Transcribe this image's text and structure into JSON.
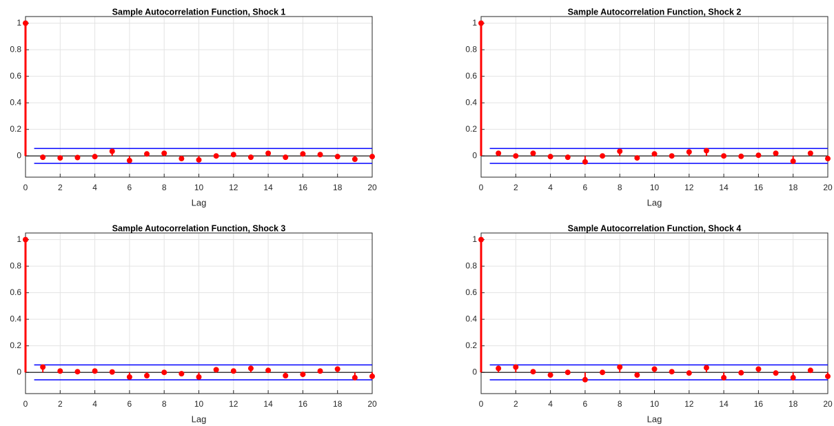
{
  "chart_data": [
    {
      "type": "stem",
      "title": "Sample Autocorrelation Function, Shock 1",
      "xlabel": "Lag",
      "x": [
        0,
        1,
        2,
        3,
        4,
        5,
        6,
        7,
        8,
        9,
        10,
        11,
        12,
        13,
        14,
        15,
        16,
        17,
        18,
        19,
        20
      ],
      "values": [
        1,
        -0.01,
        -0.015,
        -0.012,
        -0.005,
        0.035,
        -0.035,
        0.015,
        0.02,
        -0.02,
        -0.03,
        0.0,
        0.01,
        -0.01,
        0.02,
        -0.01,
        0.015,
        0.01,
        -0.005,
        -0.025,
        -0.005
      ],
      "color": "#ff0000",
      "confidence_bounds": [
        0.056,
        -0.056
      ],
      "bounds_color": "#0000ff",
      "xlim": [
        0,
        20
      ],
      "ylim": [
        -0.16,
        1.05
      ],
      "xticks": [
        0,
        2,
        4,
        6,
        8,
        10,
        12,
        14,
        16,
        18,
        20
      ],
      "yticks": [
        0,
        0.2,
        0.4,
        0.6,
        0.8,
        1
      ],
      "grid": true
    },
    {
      "type": "stem",
      "title": "Sample Autocorrelation Function, Shock 2",
      "xlabel": "Lag",
      "x": [
        0,
        1,
        2,
        3,
        4,
        5,
        6,
        7,
        8,
        9,
        10,
        11,
        12,
        13,
        14,
        15,
        16,
        17,
        18,
        19,
        20
      ],
      "values": [
        1,
        0.02,
        0.0,
        0.02,
        -0.005,
        -0.01,
        -0.045,
        0.0,
        0.035,
        -0.015,
        0.015,
        0.0,
        0.03,
        0.04,
        0.0,
        -0.003,
        0.005,
        0.02,
        -0.04,
        0.02,
        -0.02
      ],
      "color": "#ff0000",
      "confidence_bounds": [
        0.056,
        -0.056
      ],
      "bounds_color": "#0000ff",
      "xlim": [
        0,
        20
      ],
      "ylim": [
        -0.16,
        1.05
      ],
      "xticks": [
        0,
        2,
        4,
        6,
        8,
        10,
        12,
        14,
        16,
        18,
        20
      ],
      "yticks": [
        0,
        0.2,
        0.4,
        0.6,
        0.8,
        1
      ],
      "grid": true
    },
    {
      "type": "stem",
      "title": "Sample Autocorrelation Function, Shock 3",
      "xlabel": "Lag",
      "x": [
        0,
        1,
        2,
        3,
        4,
        5,
        6,
        7,
        8,
        9,
        10,
        11,
        12,
        13,
        14,
        15,
        16,
        17,
        18,
        19,
        20
      ],
      "values": [
        1,
        0.04,
        0.01,
        0.005,
        0.01,
        0.003,
        -0.035,
        -0.025,
        0.0,
        -0.01,
        -0.035,
        0.02,
        0.01,
        0.03,
        0.015,
        -0.025,
        -0.015,
        0.01,
        0.025,
        -0.04,
        -0.03
      ],
      "color": "#ff0000",
      "confidence_bounds": [
        0.056,
        -0.056
      ],
      "bounds_color": "#0000ff",
      "xlim": [
        0,
        20
      ],
      "ylim": [
        -0.16,
        1.05
      ],
      "xticks": [
        0,
        2,
        4,
        6,
        8,
        10,
        12,
        14,
        16,
        18,
        20
      ],
      "yticks": [
        0,
        0.2,
        0.4,
        0.6,
        0.8,
        1
      ],
      "grid": true
    },
    {
      "type": "stem",
      "title": "Sample Autocorrelation Function, Shock 4",
      "xlabel": "Lag",
      "x": [
        0,
        1,
        2,
        3,
        4,
        5,
        6,
        7,
        8,
        9,
        10,
        11,
        12,
        13,
        14,
        15,
        16,
        17,
        18,
        19,
        20
      ],
      "values": [
        1,
        0.03,
        0.04,
        0.005,
        -0.02,
        0.0,
        -0.055,
        0.0,
        0.04,
        -0.02,
        0.025,
        0.005,
        -0.005,
        0.035,
        -0.04,
        -0.003,
        0.025,
        -0.005,
        -0.04,
        0.015,
        -0.03
      ],
      "color": "#ff0000",
      "confidence_bounds": [
        0.056,
        -0.056
      ],
      "bounds_color": "#0000ff",
      "xlim": [
        0,
        20
      ],
      "ylim": [
        -0.16,
        1.05
      ],
      "xticks": [
        0,
        2,
        4,
        6,
        8,
        10,
        12,
        14,
        16,
        18,
        20
      ],
      "yticks": [
        0,
        0.2,
        0.4,
        0.6,
        0.8,
        1
      ],
      "grid": true
    }
  ]
}
